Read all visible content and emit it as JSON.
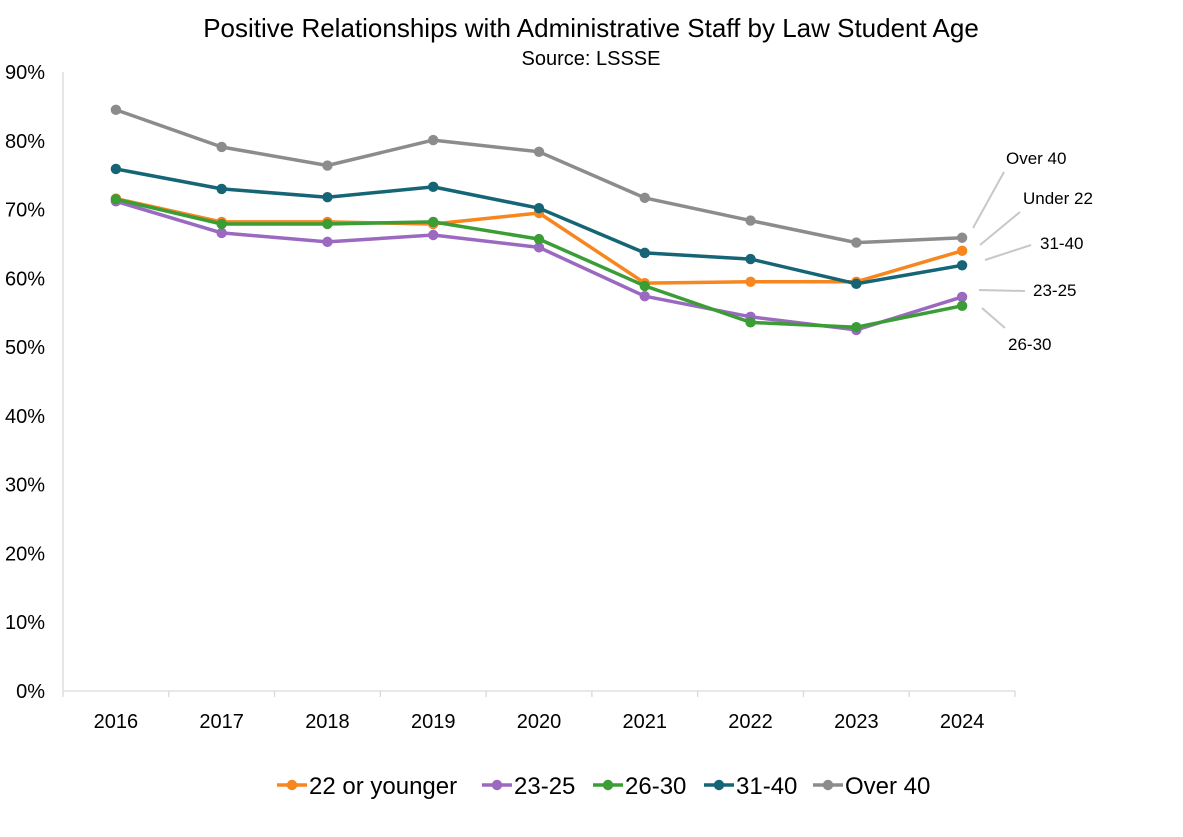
{
  "chart_data": {
    "type": "line",
    "title": "Positive Relationships with Administrative Staff by Law Student Age",
    "subtitle": "Source: LSSSE",
    "xlabel": "",
    "ylabel": "",
    "ylim": [
      0,
      90
    ],
    "y_ticks": [
      "0%",
      "10%",
      "20%",
      "30%",
      "40%",
      "50%",
      "60%",
      "70%",
      "80%",
      "90%"
    ],
    "categories": [
      "2016",
      "2017",
      "2018",
      "2019",
      "2020",
      "2021",
      "2022",
      "2023",
      "2024"
    ],
    "grid": false,
    "legend_position": "bottom",
    "series": [
      {
        "name": "22 or younger",
        "color": "#F7861E",
        "values": [
          71.6,
          68.2,
          68.2,
          67.9,
          69.5,
          59.3,
          59.5,
          59.5,
          64.0
        ]
      },
      {
        "name": "23-25",
        "color": "#9B6AC0",
        "values": [
          71.2,
          66.6,
          65.3,
          66.3,
          64.5,
          57.4,
          54.4,
          52.5,
          57.3
        ]
      },
      {
        "name": "26-30",
        "color": "#3A9D35",
        "values": [
          71.5,
          67.9,
          67.9,
          68.2,
          65.7,
          58.9,
          53.6,
          52.9,
          56.0
        ]
      },
      {
        "name": "31-40",
        "color": "#166577",
        "values": [
          75.9,
          73.0,
          71.8,
          73.3,
          70.2,
          63.7,
          62.8,
          59.2,
          61.9
        ]
      },
      {
        "name": "Over 40",
        "color": "#8C8C8C",
        "values": [
          84.5,
          79.1,
          76.4,
          80.1,
          78.4,
          71.7,
          68.4,
          65.2,
          65.9
        ]
      }
    ],
    "annotations": [
      "Over 40",
      "Under 22",
      "31-40",
      "23-25",
      "26-30"
    ]
  }
}
